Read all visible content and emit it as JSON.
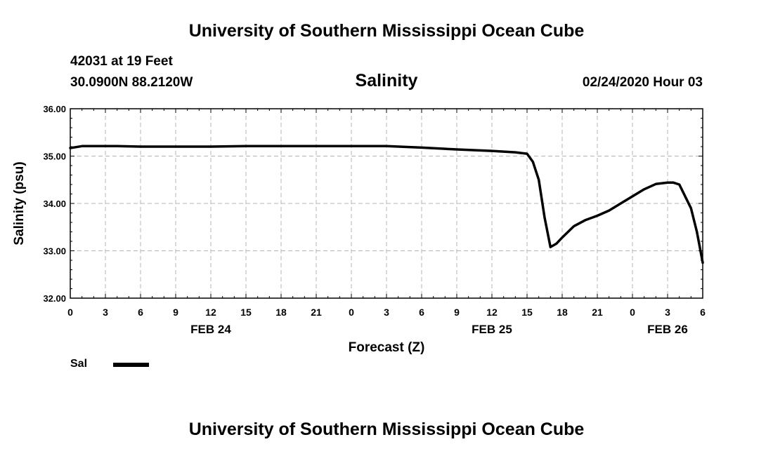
{
  "header": {
    "title": "University of Southern Mississippi Ocean Cube",
    "station": "42031 at 19 Feet",
    "coords": "30.0900N 88.2120W",
    "variable": "Salinity",
    "run_time": "02/24/2020 Hour 03"
  },
  "footer": {
    "title": "University of Southern Mississippi Ocean Cube"
  },
  "legend": {
    "label": "Sal"
  },
  "chart_data": {
    "type": "line",
    "title": "Salinity",
    "xlabel": "Forecast (Z)",
    "ylabel": "Salinity (psu)",
    "ylim": [
      32.0,
      36.0
    ],
    "yticks": [
      "32.00",
      "33.00",
      "34.00",
      "35.00",
      "36.00"
    ],
    "xlim": [
      0,
      54
    ],
    "xticks": [
      {
        "x": 0,
        "label": "0"
      },
      {
        "x": 3,
        "label": "3"
      },
      {
        "x": 6,
        "label": "6"
      },
      {
        "x": 9,
        "label": "9"
      },
      {
        "x": 12,
        "label": "12"
      },
      {
        "x": 15,
        "label": "15"
      },
      {
        "x": 18,
        "label": "18"
      },
      {
        "x": 21,
        "label": "21"
      },
      {
        "x": 24,
        "label": "0"
      },
      {
        "x": 27,
        "label": "3"
      },
      {
        "x": 30,
        "label": "6"
      },
      {
        "x": 33,
        "label": "9"
      },
      {
        "x": 36,
        "label": "12"
      },
      {
        "x": 39,
        "label": "15"
      },
      {
        "x": 42,
        "label": "18"
      },
      {
        "x": 45,
        "label": "21"
      },
      {
        "x": 48,
        "label": "0"
      },
      {
        "x": 51,
        "label": "3"
      },
      {
        "x": 54,
        "label": "6"
      }
    ],
    "date_labels": [
      {
        "x": 12,
        "label": "FEB 24"
      },
      {
        "x": 36,
        "label": "FEB 25"
      },
      {
        "x": 51,
        "label": "FEB 26"
      }
    ],
    "grid": true,
    "legend_position": "bottom-left",
    "series": [
      {
        "name": "Sal",
        "color": "#000000",
        "x": [
          0,
          0.5,
          1,
          2,
          4,
          6,
          9,
          12,
          15,
          18,
          21,
          24,
          27,
          30,
          33,
          36,
          38,
          39,
          39.5,
          40,
          40.5,
          41,
          41.5,
          42,
          43,
          44,
          45,
          46,
          47,
          48,
          49,
          50,
          51,
          51.5,
          52,
          53,
          53.5,
          54
        ],
        "values": [
          35.17,
          35.19,
          35.21,
          35.21,
          35.21,
          35.2,
          35.2,
          35.2,
          35.21,
          35.21,
          35.21,
          35.21,
          35.21,
          35.18,
          35.14,
          35.11,
          35.08,
          35.05,
          34.88,
          34.5,
          33.7,
          33.08,
          33.15,
          33.28,
          33.52,
          33.65,
          33.74,
          33.85,
          34.0,
          34.15,
          34.3,
          34.41,
          34.44,
          34.44,
          34.4,
          33.9,
          33.4,
          32.75
        ]
      }
    ]
  }
}
